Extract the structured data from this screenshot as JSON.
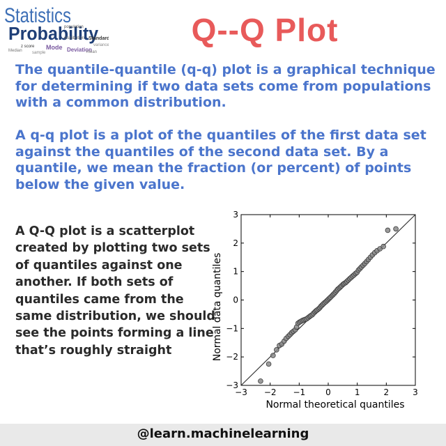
{
  "logo": {
    "words": [
      {
        "t": "Statistics",
        "c": "#3d6fb6"
      },
      {
        "t": "Probability",
        "c": "#1f3f77"
      },
      {
        "t": "population",
        "c": "#555"
      },
      {
        "t": "distribution",
        "c": "#666"
      },
      {
        "t": "Standard",
        "c": "#333"
      },
      {
        "t": "z score",
        "c": "#333"
      },
      {
        "t": "Mode",
        "c": "#7a5aa0"
      },
      {
        "t": "Deviation",
        "c": "#7a5aa0"
      },
      {
        "t": "Median",
        "c": "#777"
      },
      {
        "t": "variance",
        "c": "#888"
      },
      {
        "t": "sample",
        "c": "#888"
      },
      {
        "t": "mean",
        "c": "#777"
      }
    ]
  },
  "title": "Q--Q Plot",
  "paragraph1": "The quantile-quantile (q-q) plot is a graphical technique for determining if two data sets come from populations with a common distribution.",
  "paragraph2": "A q-q plot is a plot of the quantiles of the first data set against the quantiles of the second data set. By a quantile, we mean the fraction (or percent) of points below the given value.",
  "paragraph3": "A Q-Q plot is a scatterplot created by plotting two sets of quantiles against one another. If both sets of quantiles came from the same distribution, we should see the points forming a line that’s roughly straight",
  "footer": "@learn.machinelearning",
  "chart_data": {
    "type": "scatter",
    "xlabel": "Normal theoretical quantiles",
    "ylabel": "Normal data quantiles",
    "xlim": [
      -3,
      3
    ],
    "ylim": [
      -3,
      3
    ],
    "xticks": [
      "−3",
      "−2",
      "−1",
      "0",
      "1",
      "2",
      "3"
    ],
    "yticks": [
      "−3",
      "−2",
      "−1",
      "0",
      "1",
      "2",
      "3"
    ],
    "reference_line": {
      "from": [
        -3,
        -3
      ],
      "to": [
        3,
        3
      ]
    },
    "points": [
      [
        -2.33,
        -2.85
      ],
      [
        -2.05,
        -2.25
      ],
      [
        -1.9,
        -1.95
      ],
      [
        -1.78,
        -1.75
      ],
      [
        -1.68,
        -1.6
      ],
      [
        -1.6,
        -1.55
      ],
      [
        -1.52,
        -1.45
      ],
      [
        -1.45,
        -1.35
      ],
      [
        -1.38,
        -1.28
      ],
      [
        -1.32,
        -1.22
      ],
      [
        -1.26,
        -1.15
      ],
      [
        -1.2,
        -1.1
      ],
      [
        -1.14,
        -1.05
      ],
      [
        -1.09,
        -0.95
      ],
      [
        -1.04,
        -0.82
      ],
      [
        -0.99,
        -0.78
      ],
      [
        -0.94,
        -0.75
      ],
      [
        -0.89,
        -0.72
      ],
      [
        -0.84,
        -0.7
      ],
      [
        -0.79,
        -0.68
      ],
      [
        -0.74,
        -0.66
      ],
      [
        -0.69,
        -0.62
      ],
      [
        -0.64,
        -0.58
      ],
      [
        -0.6,
        -0.55
      ],
      [
        -0.55,
        -0.52
      ],
      [
        -0.51,
        -0.47
      ],
      [
        -0.46,
        -0.42
      ],
      [
        -0.42,
        -0.38
      ],
      [
        -0.38,
        -0.35
      ],
      [
        -0.33,
        -0.31
      ],
      [
        -0.29,
        -0.27
      ],
      [
        -0.25,
        -0.22
      ],
      [
        -0.21,
        -0.18
      ],
      [
        -0.17,
        -0.14
      ],
      [
        -0.13,
        -0.1
      ],
      [
        -0.08,
        -0.06
      ],
      [
        -0.04,
        -0.02
      ],
      [
        0.0,
        0.02
      ],
      [
        0.04,
        0.06
      ],
      [
        0.08,
        0.1
      ],
      [
        0.13,
        0.15
      ],
      [
        0.17,
        0.19
      ],
      [
        0.21,
        0.23
      ],
      [
        0.25,
        0.28
      ],
      [
        0.29,
        0.33
      ],
      [
        0.33,
        0.38
      ],
      [
        0.38,
        0.42
      ],
      [
        0.42,
        0.46
      ],
      [
        0.46,
        0.5
      ],
      [
        0.51,
        0.55
      ],
      [
        0.55,
        0.58
      ],
      [
        0.6,
        0.61
      ],
      [
        0.64,
        0.65
      ],
      [
        0.69,
        0.7
      ],
      [
        0.74,
        0.75
      ],
      [
        0.79,
        0.79
      ],
      [
        0.84,
        0.84
      ],
      [
        0.89,
        0.88
      ],
      [
        0.94,
        0.93
      ],
      [
        0.99,
        0.97
      ],
      [
        1.04,
        1.05
      ],
      [
        1.09,
        1.1
      ],
      [
        1.14,
        1.16
      ],
      [
        1.2,
        1.22
      ],
      [
        1.26,
        1.28
      ],
      [
        1.32,
        1.35
      ],
      [
        1.38,
        1.42
      ],
      [
        1.45,
        1.5
      ],
      [
        1.52,
        1.58
      ],
      [
        1.6,
        1.66
      ],
      [
        1.68,
        1.73
      ],
      [
        1.78,
        1.8
      ],
      [
        1.9,
        1.88
      ],
      [
        2.05,
        2.45
      ],
      [
        2.33,
        2.5
      ]
    ]
  }
}
